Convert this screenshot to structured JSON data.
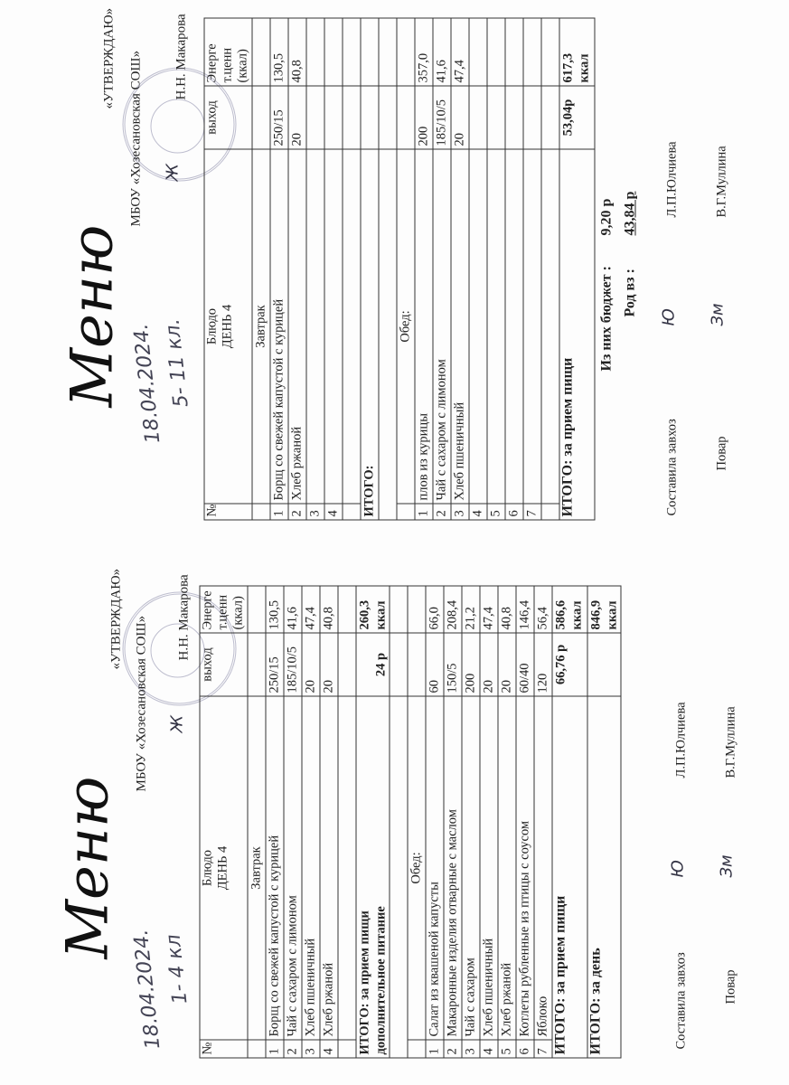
{
  "menus": [
    {
      "title": "Меню",
      "handwritten_date": "18.04.2024.",
      "handwritten_grades": "1- 4 кл",
      "approve": "«УТВЕРЖДАЮ»",
      "org": "МБОУ «Хозесановская СОШ»",
      "director": "Н.Н. Макарова",
      "header": {
        "num": "№",
        "dish": "Блюдо",
        "day": "ДЕНЬ 4",
        "yield": "выход",
        "energy1": "Энерге",
        "energy2": "т.ценн",
        "energy3": "(ккал)"
      },
      "breakfast_label": "Завтрак",
      "breakfast": [
        {
          "n": "1",
          "dish": "Борщ со свежей капустой с курицей",
          "yield": "250/15",
          "energy": "130,5"
        },
        {
          "n": "2",
          "dish": "Чай с сахаром с лимоном",
          "yield": "185/10/5",
          "energy": "41,6"
        },
        {
          "n": "3",
          "dish": "Хлеб пшеничный",
          "yield": "20",
          "energy": "47,4"
        },
        {
          "n": "4",
          "dish": "Хлеб ржаной",
          "yield": "20",
          "energy": "40,8"
        }
      ],
      "breakfast_total": {
        "label1": "ИТОГО: за прием пищи",
        "label2": "дополнительное питание",
        "cost": "24 р",
        "energy1": "260,3",
        "energy2": "ккал"
      },
      "lunch_label": "Обед:",
      "lunch": [
        {
          "n": "1",
          "dish": "Салат из квашеной капусты",
          "yield": "60",
          "energy": "66,0"
        },
        {
          "n": "2",
          "dish": "Макаронные изделия отварные с маслом",
          "yield": "150/5",
          "energy": "208,4"
        },
        {
          "n": "3",
          "dish": "Чай с сахаром",
          "yield": "200",
          "energy": "21,2"
        },
        {
          "n": "4",
          "dish": "Хлеб пшеничный",
          "yield": "20",
          "energy": "47,4"
        },
        {
          "n": "5",
          "dish": "Хлеб ржаной",
          "yield": "20",
          "energy": "40,8"
        },
        {
          "n": "6",
          "dish": "Котлеты рубленные из птицы с соусом",
          "yield": "60/40",
          "energy": "146,4"
        },
        {
          "n": "7",
          "dish": "Яблоко",
          "yield": "120",
          "energy": "56,4"
        }
      ],
      "lunch_total": {
        "label1": "ИТОГО: за прием пищи",
        "cost": "66,76 р",
        "energy1": "586,6",
        "energy2": "ккал"
      },
      "day_total": {
        "label1": "ИТОГО: за день",
        "energy1": "846,9",
        "energy2": "ккал"
      },
      "footer": {
        "compiled": "Составила завхоз",
        "compiled_name": "Л.П.Юлчиева",
        "cook": "Повар",
        "cook_name": "В.Г.Муллина"
      }
    },
    {
      "title": "Меню",
      "handwritten_date": "18.04.2024.",
      "handwritten_grades": "5- 11 кл.",
      "approve": "«УТВЕРЖДАЮ»",
      "org": "МБОУ «Хозесановская СОШ»",
      "director": "Н.Н. Макарова",
      "header": {
        "num": "№",
        "dish": "Блюдо",
        "day": "ДЕНЬ 4",
        "yield": "выход",
        "energy1": "Энерге",
        "energy2": "т.ценн",
        "energy3": "(ккал)"
      },
      "breakfast_label": "Завтрак",
      "breakfast": [
        {
          "n": "1",
          "dish": "Борщ со свежей капустой с курицей",
          "yield": "250/15",
          "energy": "130,5"
        },
        {
          "n": "2",
          "dish": "Хлеб ржаной",
          "yield": "20",
          "energy": "40,8"
        },
        {
          "n": "3",
          "dish": "",
          "yield": "",
          "energy": ""
        },
        {
          "n": "4",
          "dish": "",
          "yield": "",
          "energy": ""
        }
      ],
      "breakfast_total": {
        "label1": "ИТОГО:",
        "label2": "",
        "cost": "",
        "energy1": "",
        "energy2": ""
      },
      "lunch_label": "Обед:",
      "lunch": [
        {
          "n": "1",
          "dish": "плов из курицы",
          "yield": "200",
          "energy": "357,0"
        },
        {
          "n": "2",
          "dish": "Чай с сахаром с лимоном",
          "yield": "185/10/5",
          "energy": "41,6"
        },
        {
          "n": "3",
          "dish": "Хлеб пшеничный",
          "yield": "20",
          "energy": "47,4"
        },
        {
          "n": "4",
          "dish": "",
          "yield": "",
          "energy": ""
        },
        {
          "n": "5",
          "dish": "",
          "yield": "",
          "energy": ""
        },
        {
          "n": "6",
          "dish": "",
          "yield": "",
          "energy": ""
        },
        {
          "n": "7",
          "dish": "",
          "yield": "",
          "energy": ""
        }
      ],
      "lunch_total": {
        "label1": "ИТОГО: за прием пищи",
        "cost": "53,04р",
        "energy1": "617,3",
        "energy2": "ккал"
      },
      "budget": {
        "label": "Из них бюджет :",
        "value": "9,20 р",
        "parents_label": "Род вз   :",
        "parents_value": "43,84 р"
      },
      "footer": {
        "compiled": "Составила завхоз",
        "compiled_name": "Л.П.Юлчиева",
        "cook": "Повар",
        "cook_name": "В.Г.Муллина"
      }
    }
  ]
}
